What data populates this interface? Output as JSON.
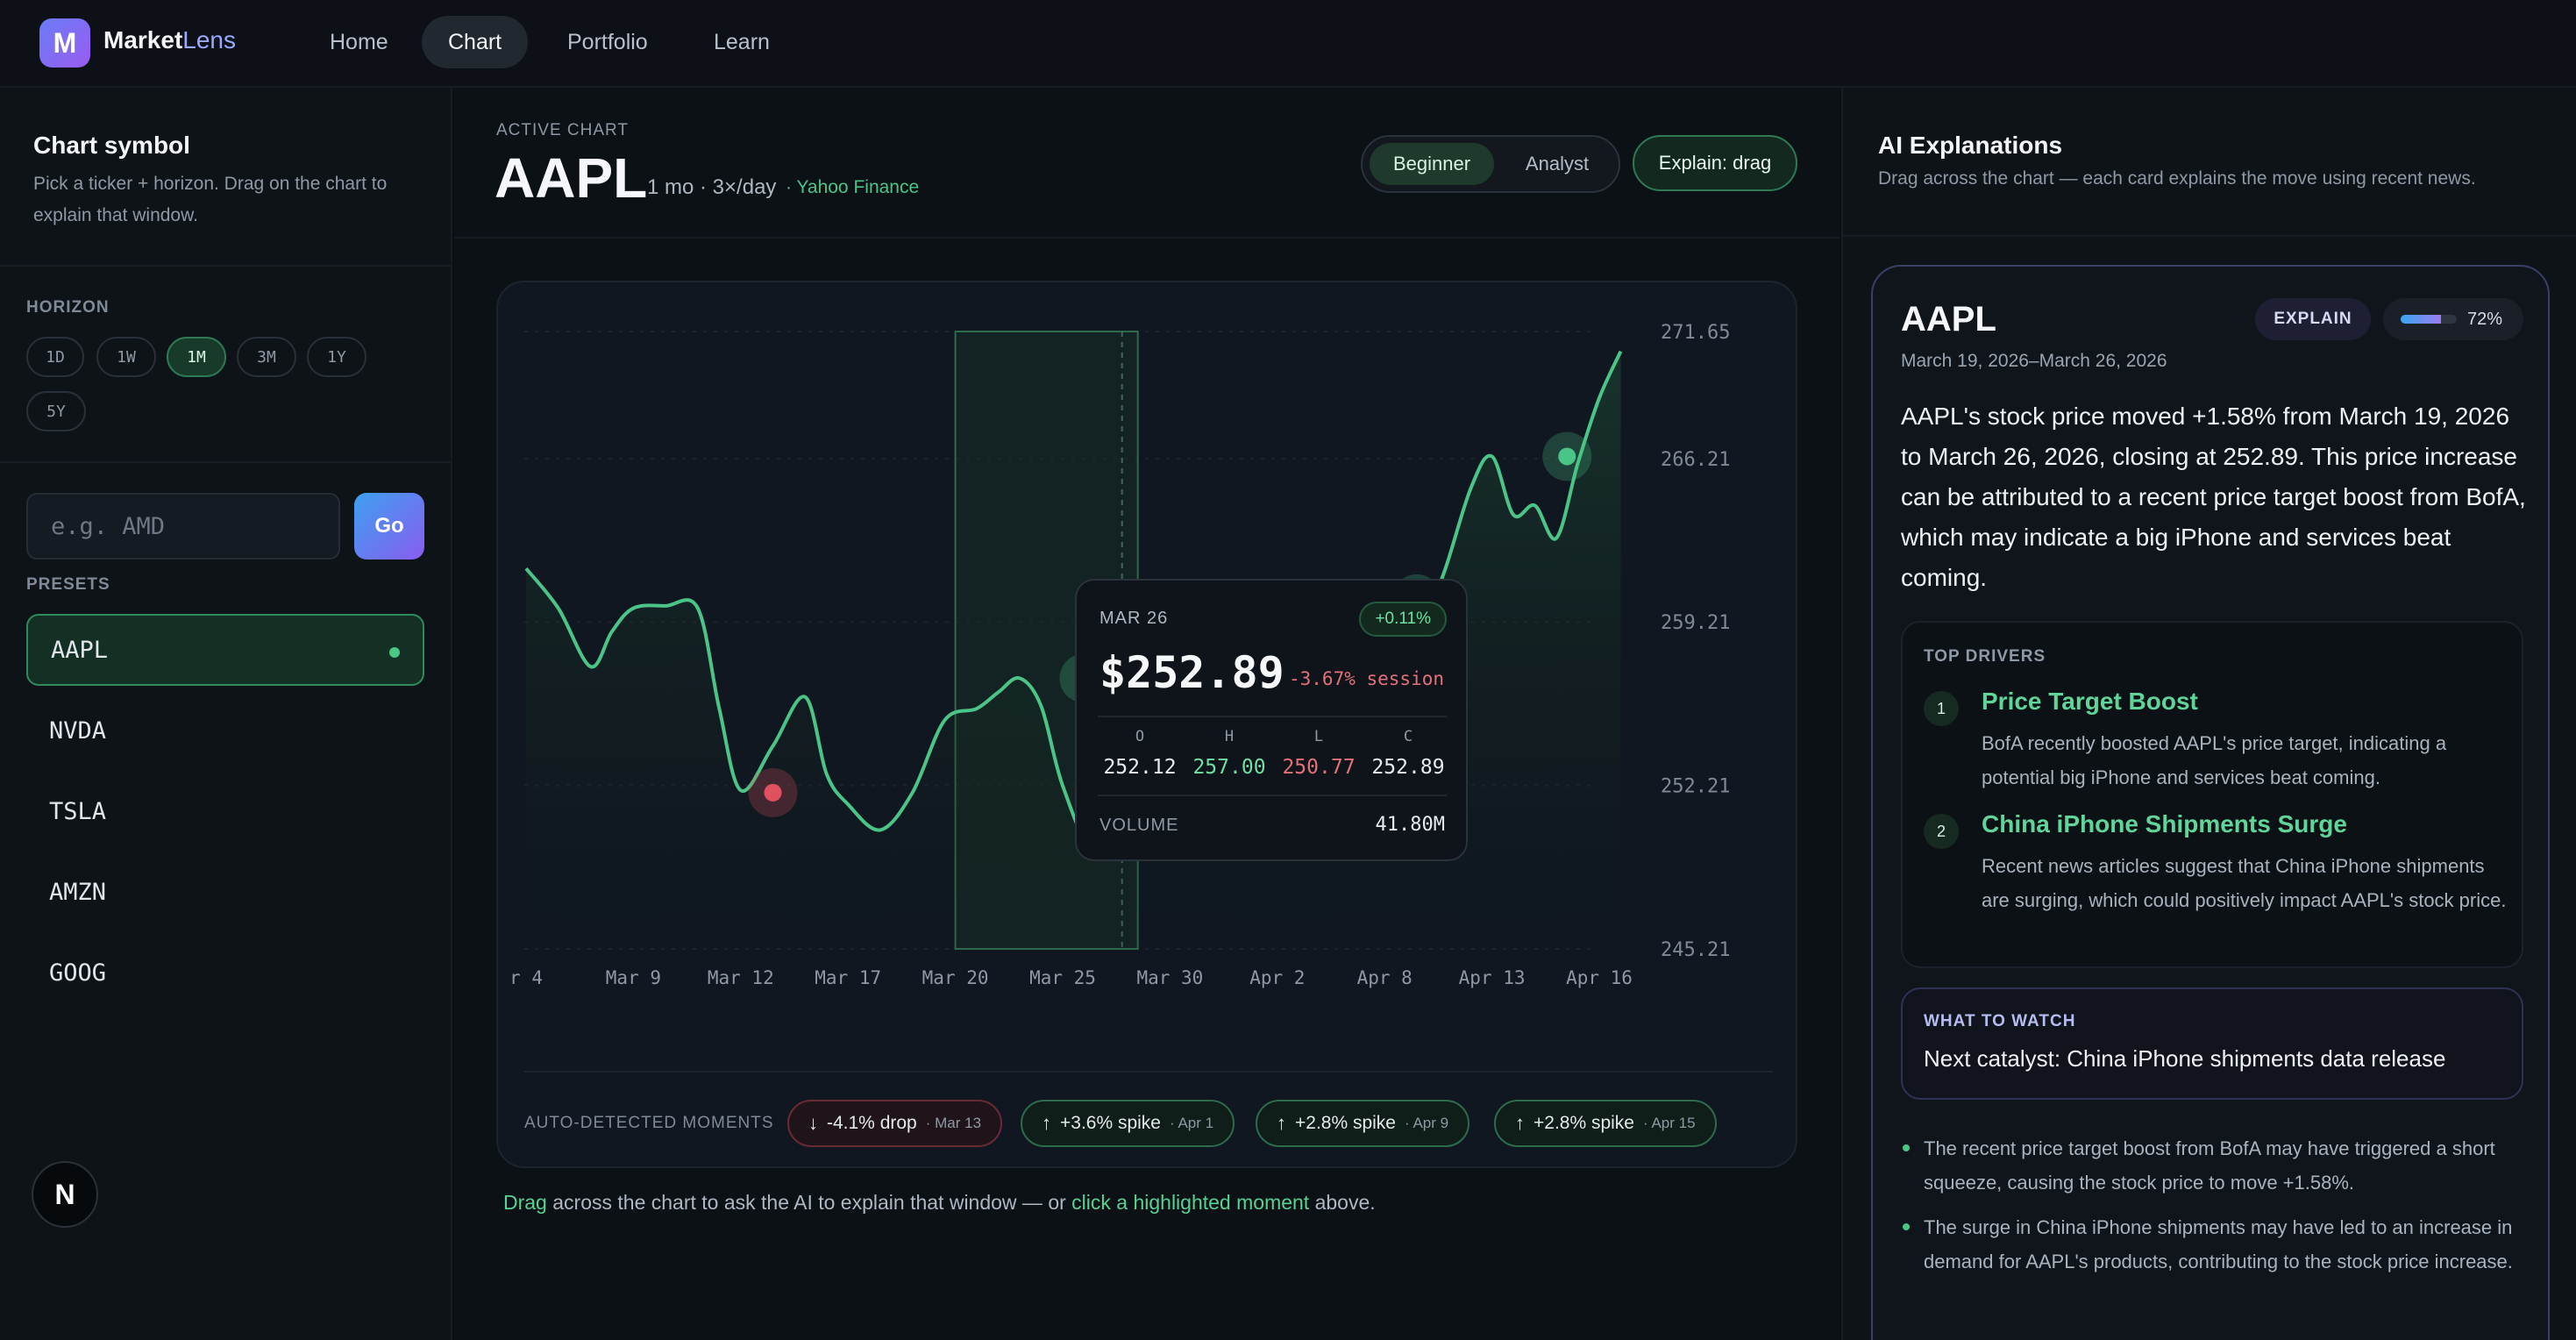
{
  "app": {
    "logo_letter": "M",
    "name_part1": "Market",
    "name_part2": "Lens",
    "nav": [
      "Home",
      "Chart",
      "Portfolio",
      "Learn"
    ],
    "active_nav": "Chart"
  },
  "sidebar": {
    "title": "Chart symbol",
    "subtitle": "Pick a ticker + horizon. Drag on the chart to explain that window.",
    "horizon_label": "HORIZON",
    "horizons": [
      "1D",
      "1W",
      "1M",
      "3M",
      "1Y",
      "5Y"
    ],
    "active_horizon": "1M",
    "input_placeholder": "e.g. AMD",
    "go_label": "Go",
    "presets_label": "PRESETS",
    "presets": [
      "AAPL",
      "NVDA",
      "TSLA",
      "AMZN",
      "GOOG"
    ],
    "active_preset": "AAPL",
    "footer_badge": "N"
  },
  "main": {
    "active_chart_label": "ACTIVE CHART",
    "ticker": "AAPL",
    "meta": "1 mo · 3×/day",
    "source": "· Yahoo Finance",
    "modes": [
      "Beginner",
      "Analyst"
    ],
    "active_mode": "Beginner",
    "explain_button": "Explain: drag",
    "tooltip": {
      "date": "MAR 26",
      "change_pill": "+0.11%",
      "price": "$252.89",
      "session": "-3.67% session",
      "ohlc_keys": [
        "O",
        "H",
        "L",
        "C"
      ],
      "ohlc_values": [
        "252.12",
        "257.00",
        "250.77",
        "252.89"
      ],
      "volume_label": "VOLUME",
      "volume_value": "41.80M"
    },
    "moments_label": "AUTO-DETECTED MOMENTS",
    "moments": [
      {
        "text": "-4.1% drop",
        "date": "· Mar 13",
        "dir": "down"
      },
      {
        "text": "+3.6% spike",
        "date": "· Apr 1",
        "dir": "up"
      },
      {
        "text": "+2.8% spike",
        "date": "· Apr 9",
        "dir": "up"
      },
      {
        "text": "+2.8% spike",
        "date": "· Apr 15",
        "dir": "up"
      }
    ],
    "hint_part1": "Drag",
    "hint_part2": " across the chart to ask the AI to explain that window — or ",
    "hint_part3": "click a highlighted moment",
    "hint_part4": " above."
  },
  "chart_data": {
    "type": "line",
    "x_ticks": [
      "r 4",
      "Mar 9",
      "Mar 12",
      "Mar 17",
      "Mar 20",
      "Mar 25",
      "Mar 30",
      "Apr 2",
      "Apr 8",
      "Apr 13",
      "Apr 16"
    ],
    "y_ticks": [
      "271.65",
      "266.21",
      "259.21",
      "252.21",
      "245.21"
    ],
    "ylim": [
      245.21,
      271.65
    ],
    "series": [
      {
        "x": [
          0,
          0.3,
          0.6,
          0.8,
          1.0,
          1.3,
          1.6,
          1.8,
          2.0,
          2.3,
          2.6,
          2.8,
          3.0,
          3.3,
          3.6,
          3.9,
          4.2,
          4.4,
          4.6,
          4.8,
          5.0,
          5.3,
          5.6,
          6.0,
          6.3,
          6.6,
          6.8,
          7.0,
          7.3,
          7.6,
          7.9,
          8.2,
          8.5,
          8.8,
          9.0,
          9.2,
          9.4,
          9.6,
          9.8,
          10.0,
          10.2
        ],
        "y": [
          261.5,
          259.8,
          257.3,
          258.8,
          259.8,
          259.9,
          259.8,
          255.5,
          252.0,
          253.9,
          256.0,
          252.7,
          251.4,
          250.3,
          251.9,
          255.0,
          255.5,
          256.2,
          256.8,
          255.6,
          252.2,
          249.3,
          251.2,
          254.2,
          256.0,
          257.4,
          258.5,
          259.0,
          259.8,
          259.4,
          258.5,
          258.9,
          260.7,
          264.9,
          266.3,
          263.8,
          264.2,
          262.8,
          266.0,
          268.8,
          270.8
        ]
      }
    ],
    "markers": [
      {
        "x": 2.3,
        "y": 251.9,
        "kind": "drop"
      },
      {
        "x": 5.2,
        "y": 256.8,
        "kind": "spike"
      },
      {
        "x": 8.3,
        "y": 260.2,
        "kind": "spike"
      },
      {
        "x": 9.7,
        "y": 266.3,
        "kind": "spike"
      }
    ],
    "selection": {
      "from": 4.0,
      "to": 5.7
    },
    "grid": true
  },
  "explanations": {
    "title": "AI Explanations",
    "subtitle": "Drag across the chart — each card explains the move using recent news.",
    "card": {
      "ticker": "AAPL",
      "range": "March 19, 2026–March 26, 2026",
      "explain_badge": "EXPLAIN",
      "confidence": 0.72,
      "confidence_text": "72%",
      "body": "AAPL's stock price moved +1.58% from March 19, 2026 to March 26, 2026, closing at 252.89. This price increase can be attributed to a recent price target boost from BofA, which may indicate a big iPhone and services beat coming.",
      "drivers_label": "TOP DRIVERS",
      "drivers": [
        {
          "num": "1",
          "title": "Price Target Boost",
          "desc": "BofA recently boosted AAPL's price target, indicating a potential big iPhone and services beat coming."
        },
        {
          "num": "2",
          "title": "China iPhone Shipments Surge",
          "desc": "Recent news articles suggest that China iPhone shipments are surging, which could positively impact AAPL's stock price."
        }
      ],
      "watch_label": "WHAT TO WATCH",
      "watch_text": "Next catalyst: China iPhone shipments data release",
      "bullets": [
        "The recent price target boost from BofA may have triggered a short squeeze, causing the stock price to move +1.58%.",
        "The surge in China iPhone shipments may have led to an increase in demand for AAPL's products, contributing to the stock price increase."
      ]
    }
  },
  "colors": {
    "accent_green": "#4bc488",
    "drop_red": "#e0505e",
    "bg": "#0b0f14"
  }
}
